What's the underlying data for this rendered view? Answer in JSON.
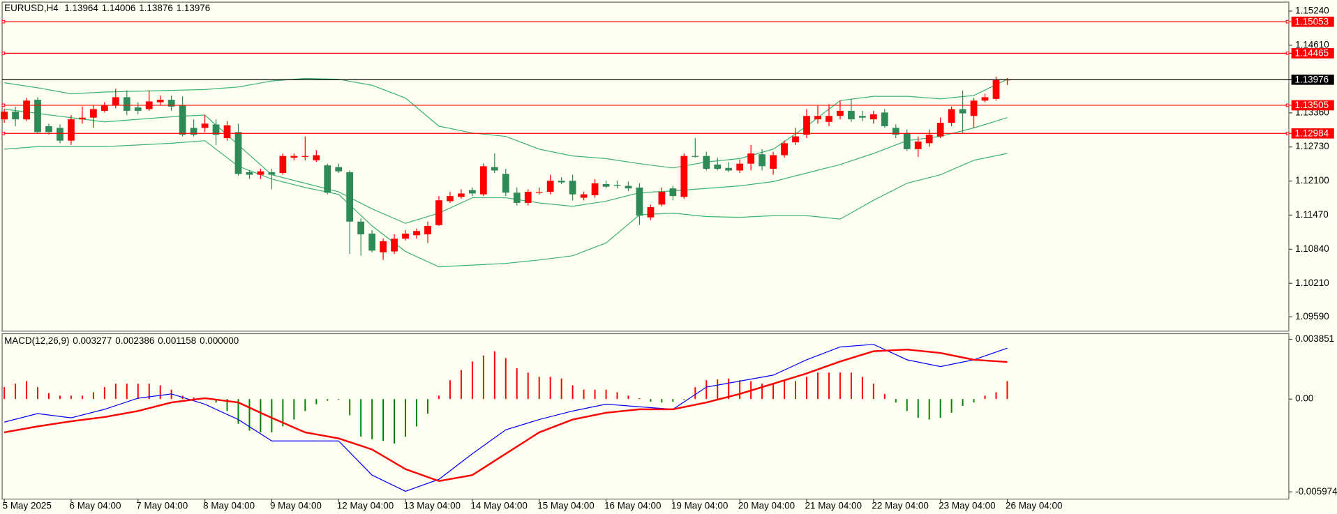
{
  "chart_data": [
    {
      "type": "candlestick",
      "title": "EURUSD,H4",
      "categories": [
        "5 May 2025",
        null,
        null,
        null,
        null,
        null,
        "6 May 04:00",
        null,
        null,
        null,
        null,
        null,
        "7 May 04:00",
        null,
        null,
        null,
        null,
        null,
        "8 May 04:00",
        null,
        null,
        null,
        null,
        null,
        "9 May 04:00",
        null,
        null,
        null,
        null,
        null,
        "12 May 04:00",
        null,
        null,
        null,
        null,
        null,
        "13 May 04:00",
        null,
        null,
        null,
        null,
        null,
        "14 May 04:00",
        null,
        null,
        null,
        null,
        null,
        "15 May 04:00",
        null,
        null,
        null,
        null,
        null,
        "16 May 04:00",
        null,
        null,
        null,
        null,
        null,
        "19 May 04:00",
        null,
        null,
        null,
        null,
        null,
        "20 May 04:00",
        null,
        null,
        null,
        null,
        null,
        "21 May 04:00",
        null,
        null,
        null,
        null,
        null,
        "22 May 04:00",
        null,
        null,
        null,
        null,
        null,
        "23 May 04:00",
        null,
        null,
        null,
        null,
        null,
        "26 May 04:00"
      ],
      "ohlc": [
        [
          1.1324,
          1.13429,
          1.13177,
          1.13382
        ],
        [
          1.13382,
          1.13476,
          1.13114,
          1.1324
        ],
        [
          1.1324,
          1.13634,
          1.13208,
          1.13586
        ],
        [
          1.13602,
          1.13649,
          1.12972,
          1.13004
        ],
        [
          1.13114,
          1.13161,
          1.12956,
          1.13004
        ],
        [
          1.13082,
          1.13145,
          1.12799,
          1.12846
        ],
        [
          1.12846,
          1.13319,
          1.12767,
          1.1324
        ],
        [
          1.1324,
          1.13476,
          1.13161,
          1.13271
        ],
        [
          1.13271,
          1.13492,
          1.13082,
          1.13429
        ],
        [
          1.13397,
          1.13555,
          1.13366,
          1.13492
        ],
        [
          1.13492,
          1.13807,
          1.13445,
          1.13649
        ],
        [
          1.13649,
          1.13775,
          1.13319,
          1.13397
        ],
        [
          1.1346,
          1.13555,
          1.13334,
          1.13397
        ],
        [
          1.13429,
          1.13775,
          1.13397,
          1.13571
        ],
        [
          1.13555,
          1.13681,
          1.13492,
          1.13602
        ],
        [
          1.13602,
          1.13681,
          1.13397,
          1.13476
        ],
        [
          1.13492,
          1.13665,
          1.12925,
          1.12956
        ],
        [
          1.13082,
          1.1324,
          1.12925,
          1.12956
        ],
        [
          1.13082,
          1.13319,
          1.13004,
          1.13161
        ],
        [
          1.13145,
          1.1324,
          1.12767,
          1.12956
        ],
        [
          1.12893,
          1.13208,
          1.12846,
          1.1313
        ],
        [
          1.13004,
          1.13161,
          1.122,
          1.12232
        ],
        [
          1.12263,
          1.12295,
          1.12137,
          1.12216
        ],
        [
          1.12216,
          1.12326,
          1.12137,
          1.12279
        ],
        [
          1.12263,
          1.12326,
          1.11948,
          1.12216
        ],
        [
          1.12248,
          1.1261,
          1.12216,
          1.12563
        ],
        [
          1.12531,
          1.1261,
          1.12484,
          1.12563
        ],
        [
          1.12547,
          1.12925,
          1.12484,
          1.12563
        ],
        [
          1.12484,
          1.12673,
          1.12452,
          1.12578
        ],
        [
          1.12389,
          1.12421,
          1.11854,
          1.11885
        ],
        [
          1.12358,
          1.12421,
          1.12248,
          1.12279
        ],
        [
          1.12263,
          1.12295,
          1.10751,
          1.1135
        ],
        [
          1.1135,
          1.11413,
          1.1072,
          1.11114
        ],
        [
          1.11129,
          1.11192,
          1.10783,
          1.10814
        ],
        [
          1.10783,
          1.11035,
          1.10641,
          1.10988
        ],
        [
          1.10799,
          1.11114,
          1.10751,
          1.11035
        ],
        [
          1.11035,
          1.11192,
          1.11003,
          1.11129
        ],
        [
          1.11098,
          1.11224,
          1.11035,
          1.11177
        ],
        [
          1.11114,
          1.1135,
          1.10956,
          1.11271
        ],
        [
          1.11287,
          1.11823,
          1.11271,
          1.11744
        ],
        [
          1.11728,
          1.11901,
          1.11696,
          1.11823
        ],
        [
          1.11807,
          1.11948,
          1.11775,
          1.1187
        ],
        [
          1.11933,
          1.1198,
          1.11823,
          1.1187
        ],
        [
          1.11854,
          1.12421,
          1.11823,
          1.12374
        ],
        [
          1.12358,
          1.1261,
          1.12248,
          1.12295
        ],
        [
          1.12232,
          1.12326,
          1.11823,
          1.11885
        ],
        [
          1.11885,
          1.1198,
          1.11649,
          1.11696
        ],
        [
          1.11696,
          1.11948,
          1.11649,
          1.11901
        ],
        [
          1.11885,
          1.1198,
          1.11854,
          1.11901
        ],
        [
          1.11901,
          1.12216,
          1.11854,
          1.12106
        ],
        [
          1.12106,
          1.12169,
          1.12043,
          1.12074
        ],
        [
          1.12106,
          1.12216,
          1.11744,
          1.11854
        ],
        [
          1.11791,
          1.11901,
          1.11744,
          1.11854
        ],
        [
          1.11838,
          1.12137,
          1.11791,
          1.12059
        ],
        [
          1.12043,
          1.12106,
          1.11964,
          1.11996
        ],
        [
          1.12027,
          1.12106,
          1.11964,
          1.12011
        ],
        [
          1.12011,
          1.1209,
          1.11917,
          1.11964
        ],
        [
          1.1198,
          1.12059,
          1.11287,
          1.1146
        ],
        [
          1.11429,
          1.11665,
          1.11381,
          1.11618
        ],
        [
          1.11665,
          1.1198,
          1.11633,
          1.11901
        ],
        [
          1.11964,
          1.12011,
          1.11744,
          1.11823
        ],
        [
          1.11807,
          1.1261,
          1.11775,
          1.12563
        ],
        [
          1.12563,
          1.12893,
          1.12531,
          1.12547
        ],
        [
          1.12563,
          1.12641,
          1.12295,
          1.12326
        ],
        [
          1.12405,
          1.12531,
          1.12295,
          1.12326
        ],
        [
          1.12342,
          1.12452,
          1.12263,
          1.12295
        ],
        [
          1.12295,
          1.125,
          1.12248,
          1.12421
        ],
        [
          1.12421,
          1.12767,
          1.12295,
          1.1261
        ],
        [
          1.12594,
          1.12689,
          1.12295,
          1.12374
        ],
        [
          1.12326,
          1.12641,
          1.12216,
          1.12578
        ],
        [
          1.12578,
          1.12846,
          1.12531,
          1.12799
        ],
        [
          1.12815,
          1.13082,
          1.12767,
          1.12925
        ],
        [
          1.12956,
          1.13429,
          1.12893,
          1.13303
        ],
        [
          1.1324,
          1.13492,
          1.13161,
          1.13303
        ],
        [
          1.13193,
          1.13523,
          1.13114,
          1.13303
        ],
        [
          1.13303,
          1.13586,
          1.1324,
          1.13397
        ],
        [
          1.13397,
          1.13618,
          1.13193,
          1.1324
        ],
        [
          1.13303,
          1.13397,
          1.13208,
          1.13271
        ],
        [
          1.1324,
          1.13397,
          1.13161,
          1.13334
        ],
        [
          1.13366,
          1.13429,
          1.13082,
          1.13114
        ],
        [
          1.13082,
          1.13145,
          1.12893,
          1.12956
        ],
        [
          1.12988,
          1.13051,
          1.12657,
          1.12689
        ],
        [
          1.12689,
          1.12925,
          1.12547,
          1.1283
        ],
        [
          1.12799,
          1.13051,
          1.12736,
          1.12956
        ],
        [
          1.12925,
          1.13271,
          1.12893,
          1.13177
        ],
        [
          1.13177,
          1.13476,
          1.13114,
          1.13429
        ],
        [
          1.13429,
          1.13775,
          1.12988,
          1.1335
        ],
        [
          1.13303,
          1.13634,
          1.13082,
          1.13586
        ],
        [
          1.13586,
          1.13712,
          1.13555,
          1.13649
        ],
        [
          1.13618,
          1.14027,
          1.13586,
          1.13964
        ],
        [
          1.13964,
          1.14006,
          1.13876,
          1.13976
        ]
      ],
      "up_color": "#ff0000",
      "down_color": "#2e8b57",
      "bands": {
        "color": "#3cb371",
        "x": [
          0,
          3,
          6,
          9,
          12,
          15,
          18,
          21,
          24,
          27,
          30,
          33,
          36,
          39,
          42,
          45,
          48,
          51,
          54,
          57,
          60,
          63,
          66,
          69,
          72,
          75,
          78,
          81,
          84,
          87,
          90
        ],
        "upper": [
          1.13917,
          1.13823,
          1.13712,
          1.13744,
          1.1376,
          1.13775,
          1.13791,
          1.13838,
          1.13949,
          1.13996,
          1.1398,
          1.1387,
          1.13634,
          1.13114,
          1.12988,
          1.12925,
          1.12689,
          1.12563,
          1.12515,
          1.12421,
          1.12342,
          1.12452,
          1.12515,
          1.12689,
          1.13114,
          1.13586,
          1.13665,
          1.13665,
          1.13618,
          1.13681,
          1.1398
        ],
        "middle": [
          1.13429,
          1.1335,
          1.13271,
          1.13193,
          1.1324,
          1.13287,
          1.13319,
          1.12767,
          1.12216,
          1.12059,
          1.11901,
          1.11586,
          1.11318,
          1.11507,
          1.11791,
          1.11791,
          1.11696,
          1.11633,
          1.11728,
          1.11885,
          1.11917,
          1.11964,
          1.12011,
          1.1209,
          1.12248,
          1.12405,
          1.1261,
          1.12846,
          1.12925,
          1.13082,
          1.13271
        ],
        "lower": [
          1.12689,
          1.12736,
          1.12736,
          1.12736,
          1.12767,
          1.12799,
          1.12846,
          1.12374,
          1.12137,
          1.1198,
          1.11854,
          1.11271,
          1.10799,
          1.10515,
          1.10547,
          1.10578,
          1.10641,
          1.1072,
          1.10956,
          1.11476,
          1.11507,
          1.11444,
          1.11429,
          1.1146,
          1.1146,
          1.11397,
          1.11744,
          1.12059,
          1.12216,
          1.12484,
          1.1261
        ]
      },
      "levels": {
        "color": "#ff0000",
        "values": [
          1.15053,
          1.14465,
          1.13505,
          1.12984
        ]
      },
      "bid_color": "#000000",
      "ylim": [
        1.09334,
        1.15398
      ],
      "yticks": [
        {
          "value": 1.1524,
          "label": "1.15240"
        },
        {
          "value": 1.1461,
          "label": "1.14610"
        },
        {
          "value": 1.1336,
          "label": "1.13360"
        },
        {
          "value": 1.1273,
          "label": "1.12730"
        },
        {
          "value": 1.121,
          "label": "1.12100"
        },
        {
          "value": 1.1147,
          "label": "1.11470"
        },
        {
          "value": 1.1084,
          "label": "1.10840"
        },
        {
          "value": 1.1021,
          "label": "1.10210"
        },
        {
          "value": 1.0959,
          "label": "1.09590"
        }
      ]
    },
    {
      "type": "macd",
      "title": "MACD(12,26,9)",
      "histogram": [
        0.00077,
        0.00099,
        0.001155,
        0.00077,
        0.000385,
        0.00022,
        0.00022,
        0.00022,
        0.00044,
        0.00077,
        0.00099,
        0.00099,
        0.00099,
        0.00099,
        0.00088,
        0.000605,
        0.00022,
        0.00011,
        5.5e-05,
        -0.00022,
        -0.00077,
        -0.001595,
        -0.002035,
        -0.002145,
        -0.002145,
        -0.00176,
        -0.00132,
        -0.00077,
        -0.00033,
        -0.00011,
        -5.5e-05,
        -0.001045,
        -0.00242,
        -0.002585,
        -0.002695,
        -0.00286,
        -0.00242,
        -0.00176,
        -0.000935,
        0.00022,
        0.00121,
        0.00187,
        0.00242,
        0.002805,
        0.00308,
        0.00264,
        0.00198,
        0.001705,
        0.00143,
        0.00143,
        0.00132,
        0.00088,
        0.000605,
        0.000605,
        0.000605,
        0.00044,
        0.00022,
        5.5e-05,
        -0.000165,
        -0.00022,
        -0.000165,
        -5.5e-05,
        0.00077,
        0.00121,
        0.001265,
        0.00132,
        0.00121,
        0.001155,
        0.00099,
        0.00099,
        0.00121,
        0.001155,
        0.00143,
        0.001705,
        0.001705,
        0.001705,
        0.001705,
        0.00143,
        0.00099,
        0.00033,
        -0.00022,
        -0.00077,
        -0.00121,
        -0.00132,
        -0.00121,
        -0.00088,
        -0.00044,
        -0.00022,
        0.00022,
        0.00044,
        0.001158
      ],
      "positive_color": "#ff0000",
      "negative_color": "#008000",
      "main": {
        "color": "#0000ff",
        "x": [
          0,
          3,
          6,
          9,
          12,
          15,
          18,
          21,
          24,
          27,
          30,
          33,
          36,
          39,
          42,
          45,
          48,
          51,
          54,
          57,
          60,
          63,
          66,
          69,
          72,
          75,
          78,
          81,
          84,
          87,
          90
        ],
        "values": [
          -0.001485,
          -0.000935,
          -0.00121,
          -0.00066,
          5.5e-05,
          0.00033,
          -0.00033,
          -0.00132,
          -0.002695,
          -0.002695,
          -0.002695,
          -0.004895,
          -0.00594,
          -0.00517,
          -0.00352,
          -0.00198,
          -0.00132,
          -0.00077,
          -0.00033,
          -0.000495,
          -0.00066,
          0.00077,
          0.001155,
          0.00154,
          0.00253,
          0.003355,
          0.00352,
          0.00253,
          0.00209,
          0.00253,
          0.003277
        ]
      },
      "signal": {
        "color": "#ff0000",
        "x": [
          0,
          3,
          6,
          9,
          12,
          15,
          18,
          21,
          24,
          27,
          30,
          33,
          36,
          39,
          42,
          45,
          48,
          51,
          54,
          57,
          60,
          63,
          66,
          69,
          72,
          75,
          78,
          81,
          84,
          87,
          90
        ],
        "values": [
          -0.002145,
          -0.00176,
          -0.00143,
          -0.001155,
          -0.00077,
          -0.00022,
          5.5e-05,
          -0.00022,
          -0.00121,
          -0.002145,
          -0.00253,
          -0.003245,
          -0.00451,
          -0.00528,
          -0.004895,
          -0.00352,
          -0.002145,
          -0.00132,
          -0.00088,
          -0.00066,
          -0.00066,
          -0.00022,
          0.00033,
          0.00099,
          0.00165,
          0.00242,
          0.00308,
          0.00319,
          0.00297,
          0.00253,
          0.002386
        ]
      },
      "readout_extra": {
        "value": 0,
        "label": "0.000000"
      },
      "ylim": [
        -0.005974,
        0.003851
      ],
      "yticks": [
        0.003851,
        {
          "value": 0,
          "label": "0.00"
        },
        -0.005974
      ]
    }
  ]
}
